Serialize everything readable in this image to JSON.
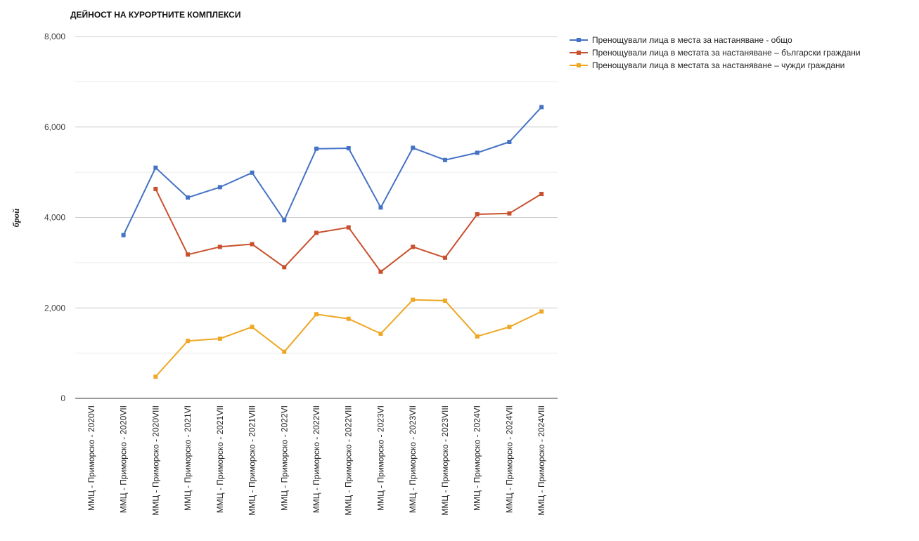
{
  "chart_data": {
    "type": "line",
    "title": "ДЕЙНОСТ НА КУРОРТНИТЕ КОМПЛЕКСИ",
    "xlabel": "",
    "ylabel": "брой",
    "ylim": [
      0,
      8000
    ],
    "y_ticks": [
      0,
      2000,
      4000,
      6000,
      8000
    ],
    "y_tick_labels": [
      "0",
      "2,000",
      "4,000",
      "6,000",
      "8,000"
    ],
    "minor_gridlines": true,
    "legend_position": "right-top",
    "categories": [
      "ММЦ - Приморско - 2020VI",
      "ММЦ - Приморско - 2020VII",
      "ММЦ - Приморско - 2020VIII",
      "ММЦ - Приморско - 2021VI",
      "ММЦ - Приморско - 2021VII",
      "ММЦ - Приморско - 2021VIII",
      "ММЦ - Приморско - 2022VI",
      "ММЦ - Приморско - 2022VII",
      "ММЦ - Приморско - 2022VIII",
      "ММЦ - Приморско - 2023VI",
      "ММЦ - Приморско - 2023VII",
      "ММЦ - Приморско - 2023VIII",
      "ММЦ - Приморско - 2024VI",
      "ММЦ - Приморско - 2024VII",
      "ММЦ - Приморско - 2024VIII"
    ],
    "series": [
      {
        "name": "Пренощували лица в места за настаняване - общо",
        "color": "#4472c4",
        "values": [
          null,
          3610,
          5100,
          4440,
          4670,
          4990,
          3940,
          5520,
          5530,
          4220,
          5540,
          5270,
          5430,
          5670,
          6440
        ]
      },
      {
        "name": "Пренощували лица в местата за настаняване – български граждани",
        "color": "#c9502d",
        "values": [
          null,
          null,
          4630,
          3180,
          3350,
          3410,
          2900,
          3660,
          3780,
          2800,
          3350,
          3110,
          4070,
          4090,
          4520
        ]
      },
      {
        "name": "Пренощували лица в местата за настаняване – чужди граждани",
        "color": "#eea825",
        "values": [
          null,
          null,
          480,
          1270,
          1320,
          1580,
          1030,
          1860,
          1760,
          1430,
          2180,
          2160,
          1370,
          1580,
          1920
        ]
      }
    ]
  }
}
